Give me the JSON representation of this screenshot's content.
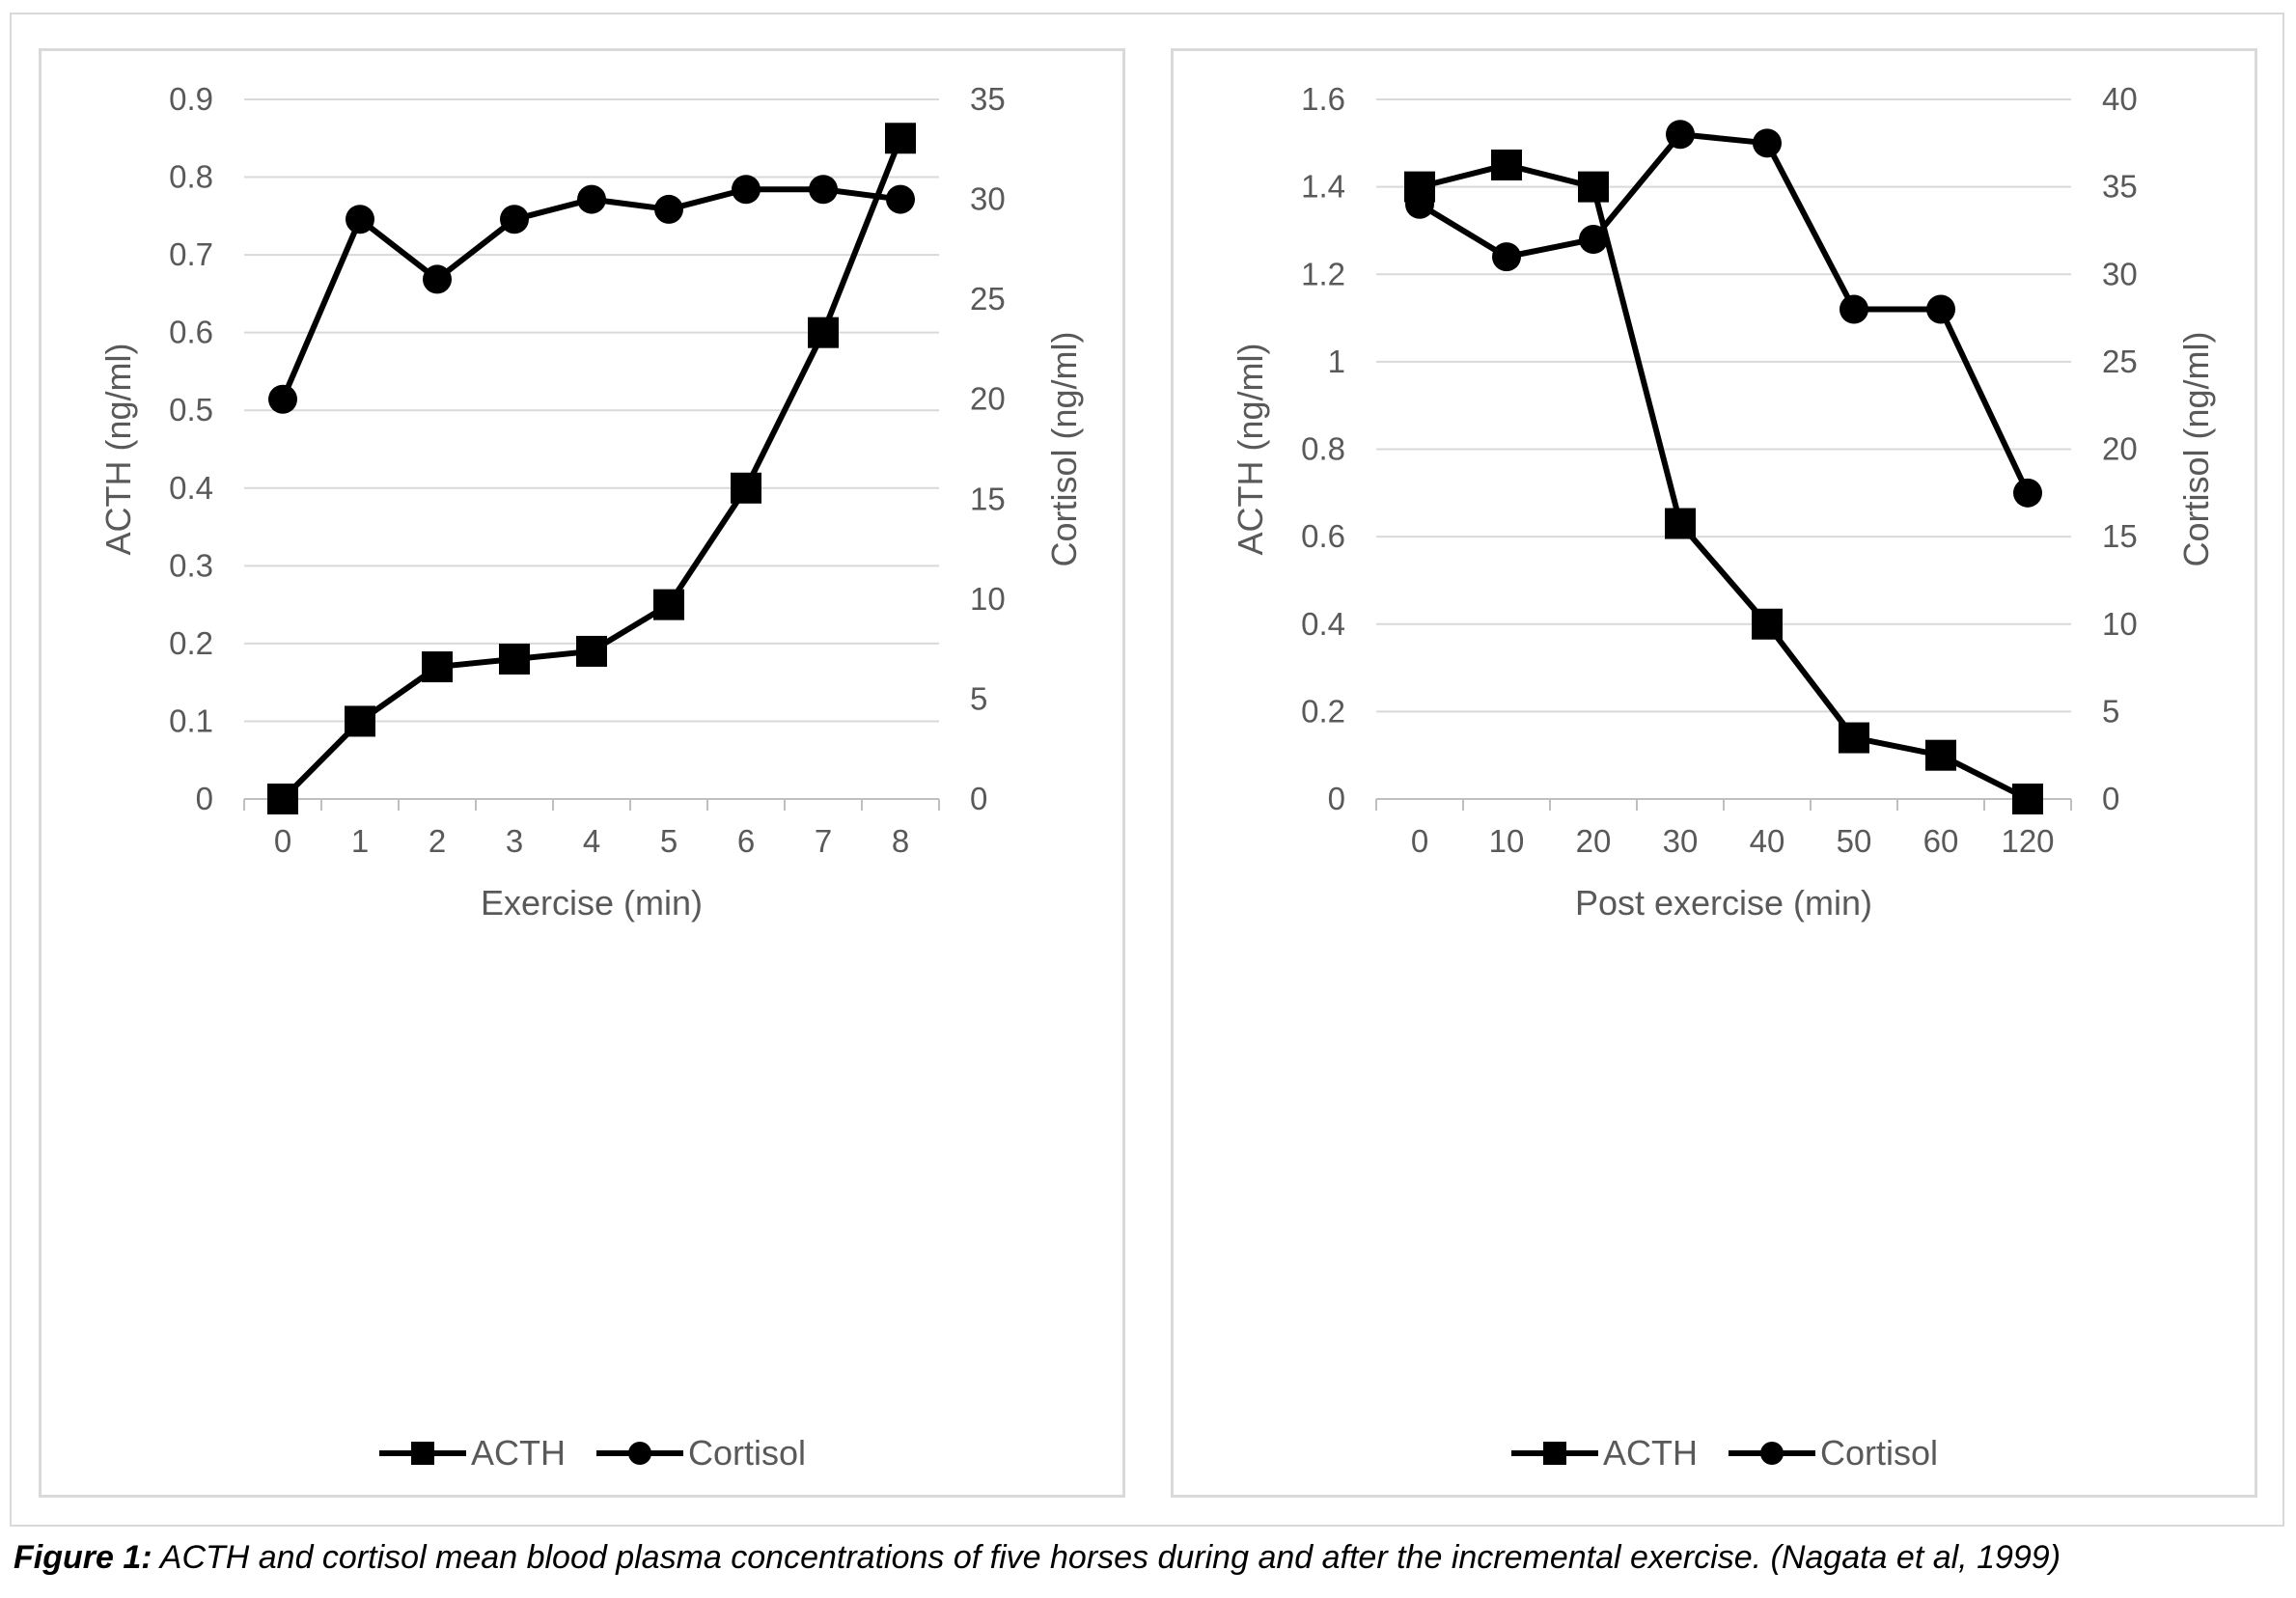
{
  "caption": {
    "label": "Figure 1:",
    "text": " ACTH and cortisol mean blood plasma concentrations of five horses during and after the incremental exercise. (Nagata et al, 1999)"
  },
  "chart_data": [
    {
      "type": "line",
      "xlabel": "Exercise (min)",
      "ylabel": "ACTH (ng/ml)",
      "y2label": "Cortisol (ng/ml)",
      "categories": [
        "0",
        "1",
        "2",
        "3",
        "4",
        "5",
        "6",
        "7",
        "8"
      ],
      "ylim": [
        0,
        0.9
      ],
      "yticks": [
        "0",
        "0.1",
        "0.2",
        "0.3",
        "0.4",
        "0.5",
        "0.6",
        "0.7",
        "0.8",
        "0.9"
      ],
      "y2lim": [
        0,
        35
      ],
      "y2ticks": [
        "0",
        "5",
        "10",
        "15",
        "20",
        "25",
        "30",
        "35"
      ],
      "grid": true,
      "legend_position": "bottom",
      "series": [
        {
          "name": "ACTH",
          "axis": "left",
          "marker": "square",
          "color": "#000000",
          "values": [
            0,
            0.1,
            0.17,
            0.18,
            0.19,
            0.25,
            0.4,
            0.6,
            0.85
          ]
        },
        {
          "name": "Cortisol",
          "axis": "right",
          "marker": "circle",
          "color": "#000000",
          "values": [
            20,
            29,
            26,
            29,
            30,
            29.5,
            30.5,
            30.5,
            30
          ]
        }
      ]
    },
    {
      "type": "line",
      "xlabel": "Post exercise (min)",
      "ylabel": "ACTH (ng/ml)",
      "y2label": "Cortisol (ng/ml)",
      "categories": [
        "0",
        "10",
        "20",
        "30",
        "40",
        "50",
        "60",
        "120"
      ],
      "ylim": [
        0,
        1.6
      ],
      "yticks": [
        "0",
        "0.2",
        "0.4",
        "0.6",
        "0.8",
        "1",
        "1.2",
        "1.4",
        "1.6"
      ],
      "y2lim": [
        0,
        40
      ],
      "y2ticks": [
        "0",
        "5",
        "10",
        "15",
        "20",
        "25",
        "30",
        "35",
        "40"
      ],
      "grid": true,
      "legend_position": "bottom",
      "series": [
        {
          "name": "ACTH",
          "axis": "left",
          "marker": "square",
          "color": "#000000",
          "values": [
            1.4,
            1.45,
            1.4,
            0.63,
            0.4,
            0.14,
            0.1,
            0
          ]
        },
        {
          "name": "Cortisol",
          "axis": "right",
          "marker": "circle",
          "color": "#000000",
          "values": [
            34,
            31,
            32,
            38,
            37.5,
            28,
            28,
            17.5
          ]
        }
      ]
    }
  ]
}
